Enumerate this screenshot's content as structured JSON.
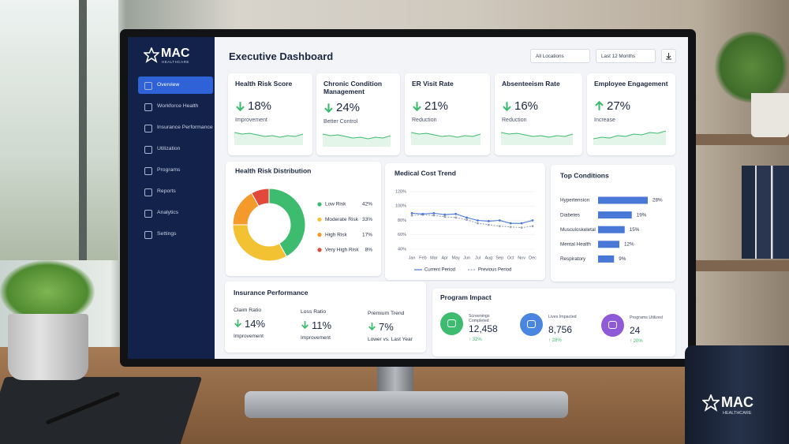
{
  "sidebar": {
    "brand": "MAC",
    "brand_sub": "HEALTHCARE",
    "nav": [
      "Overview",
      "Workforce Health",
      "Insurance Performance",
      "Utilization",
      "Programs",
      "Reports",
      "Analytics",
      "Settings"
    ]
  },
  "header": {
    "title": "Executive Dashboard",
    "filters": [
      "All Locations",
      "Last 12 Months"
    ]
  },
  "kpis": [
    {
      "title": "Health Risk Score",
      "value": "18%",
      "note": "Improvement",
      "trend": "down"
    },
    {
      "title": "Chronic Condition Management",
      "value": "24%",
      "note": "Better Control",
      "trend": "down"
    },
    {
      "title": "ER Visit Rate",
      "value": "21%",
      "note": "Reduction",
      "trend": "down"
    },
    {
      "title": "Absenteeism Rate",
      "value": "16%",
      "note": "Reduction",
      "trend": "down"
    },
    {
      "title": "Employee Engagement",
      "value": "27%",
      "note": "Increase",
      "trend": "up"
    }
  ],
  "risk_distribution": {
    "type": "pie",
    "title": "Health Risk Distribution",
    "categories": [
      "Low Risk",
      "Moderate Risk",
      "High Risk",
      "Very High Risk"
    ],
    "values": [
      42,
      33,
      17,
      8
    ],
    "value_labels": [
      "42%",
      "33%",
      "17%",
      "8%"
    ],
    "colors": [
      "#3dbb6f",
      "#f2c232",
      "#f39a2b",
      "#e2483b"
    ]
  },
  "cost_trend": {
    "type": "line",
    "title": "Medical Cost Trend",
    "categories": [
      "Jan",
      "Feb",
      "Mar",
      "Apr",
      "May",
      "Jun",
      "Jul",
      "Aug",
      "Sep",
      "Oct",
      "Nov",
      "Dec"
    ],
    "ylim": [
      40,
      120
    ],
    "yticks": [
      {
        "value": 40,
        "label": "40%"
      },
      {
        "value": 60,
        "label": "60%"
      },
      {
        "value": 80,
        "label": "80%"
      },
      {
        "value": 100,
        "label": "100%"
      },
      {
        "value": 120,
        "label": "120%"
      }
    ],
    "grid": true,
    "series": [
      {
        "name": "Current Period",
        "color": "#4a78d6",
        "line_style": "solid",
        "values": [
          90,
          89,
          90,
          88,
          89,
          84,
          80,
          79,
          80,
          76,
          76,
          80
        ]
      },
      {
        "name": "Previous Period",
        "color": "#9aa3b0",
        "line_style": "dashed",
        "values": [
          87,
          88,
          87,
          85,
          84,
          81,
          76,
          74,
          72,
          71,
          70,
          72
        ]
      }
    ]
  },
  "top_conditions": {
    "type": "bar",
    "title": "Top Conditions",
    "categories": [
      "Hypertension",
      "Diabetes",
      "Musculoskeletal",
      "Mental Health",
      "Respiratory"
    ],
    "values": [
      28,
      19,
      15,
      12,
      9
    ],
    "value_labels": [
      "28%",
      "19%",
      "15%",
      "12%",
      "9%"
    ],
    "color": "#4a78d6",
    "xlim": [
      0,
      28
    ]
  },
  "insurance": {
    "title": "Insurance Performance",
    "metrics": [
      {
        "label": "Claim Ratio",
        "value": "14%",
        "note": "Improvement",
        "trend": "down"
      },
      {
        "label": "Loss Ratio",
        "value": "11%",
        "note": "Improvement",
        "trend": "down"
      },
      {
        "label": "Premium Trend",
        "value": "7%",
        "note": "Lower vs. Last Year",
        "trend": "down"
      }
    ]
  },
  "program_impact": {
    "title": "Program Impact",
    "metrics": [
      {
        "label": "Screenings Completed",
        "value": "12,458",
        "change": "↑ 32%",
        "color": "#3dbb6f"
      },
      {
        "label": "Lives Impacted",
        "value": "8,756",
        "change": "↑ 28%",
        "color": "#4a86e0"
      },
      {
        "label": "Programs Utilized",
        "value": "24",
        "change": "↑ 20%",
        "color": "#8e5ad6"
      }
    ]
  },
  "mug": {
    "brand": "MAC",
    "brand_sub": "HEALTHCARE"
  }
}
